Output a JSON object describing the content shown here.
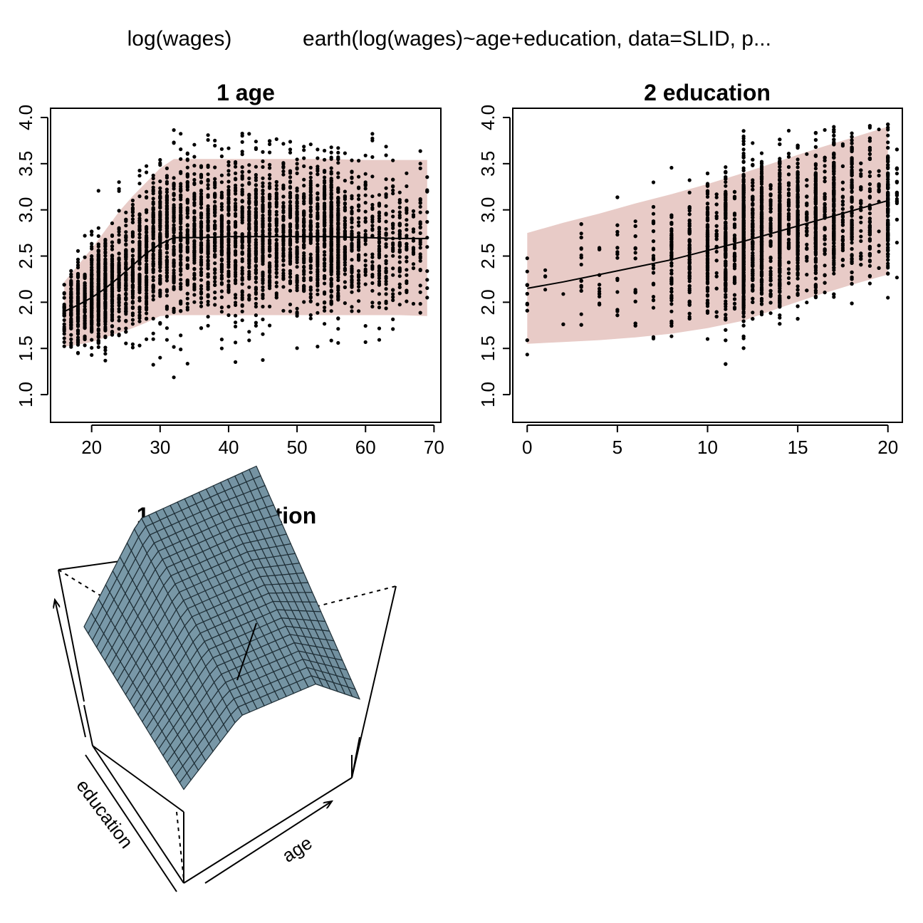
{
  "header": {
    "response": "log(wages)",
    "model_call": "earth(log(wages)~age+education, data=SLID, p..."
  },
  "chart_data": [
    {
      "type": "scatter",
      "title": "1  age",
      "xlabel": "",
      "ylabel": "",
      "xlim": [
        14,
        71
      ],
      "ylim": [
        0.7,
        4.1
      ],
      "x_ticks": [
        20,
        30,
        40,
        50,
        60,
        70
      ],
      "y_ticks": [
        1.0,
        1.5,
        2.0,
        2.5,
        3.0,
        3.5,
        4.0
      ],
      "grid": false,
      "fit_line": {
        "x": [
          16,
          18,
          20,
          22,
          24,
          26,
          28,
          30,
          32,
          36,
          40,
          45,
          50,
          55,
          60,
          65,
          69
        ],
        "y": [
          1.9,
          1.97,
          2.05,
          2.15,
          2.27,
          2.4,
          2.53,
          2.63,
          2.7,
          2.7,
          2.71,
          2.71,
          2.71,
          2.71,
          2.7,
          2.69,
          2.69
        ]
      },
      "interval_band": {
        "x": [
          16,
          18,
          20,
          22,
          24,
          26,
          28,
          30,
          32,
          36,
          40,
          45,
          50,
          55,
          60,
          65,
          69
        ],
        "upper": [
          2.22,
          2.4,
          2.58,
          2.78,
          2.98,
          3.15,
          3.3,
          3.45,
          3.55,
          3.55,
          3.55,
          3.55,
          3.55,
          3.55,
          3.54,
          3.54,
          3.54
        ],
        "lower": [
          1.52,
          1.54,
          1.57,
          1.62,
          1.67,
          1.72,
          1.78,
          1.85,
          1.86,
          1.86,
          1.86,
          1.86,
          1.86,
          1.86,
          1.86,
          1.86,
          1.85
        ]
      },
      "band_color": "#e8cbc7",
      "point_color": "#000000",
      "line_color": "#000000",
      "scatter_summary": {
        "x_range": [
          16,
          69
        ],
        "n_points_approx": 3900
      }
    },
    {
      "type": "scatter",
      "title": "2  education",
      "xlabel": "",
      "ylabel": "",
      "xlim": [
        -0.8,
        20.8
      ],
      "ylim": [
        0.7,
        4.1
      ],
      "x_ticks": [
        0,
        5,
        10,
        15,
        20
      ],
      "y_ticks": [
        1.0,
        1.5,
        2.0,
        2.5,
        3.0,
        3.5,
        4.0
      ],
      "grid": false,
      "fit_line": {
        "x": [
          0,
          2,
          4,
          6,
          8,
          10,
          12,
          14,
          16,
          18,
          20
        ],
        "y": [
          2.15,
          2.22,
          2.3,
          2.38,
          2.46,
          2.56,
          2.66,
          2.77,
          2.88,
          2.99,
          3.1
        ]
      },
      "interval_band": {
        "x": [
          0,
          2,
          4,
          6,
          8,
          10,
          12,
          14,
          16,
          18,
          20
        ],
        "upper": [
          2.75,
          2.86,
          2.96,
          3.07,
          3.17,
          3.28,
          3.4,
          3.53,
          3.66,
          3.78,
          3.9
        ],
        "lower": [
          1.55,
          1.57,
          1.59,
          1.62,
          1.66,
          1.72,
          1.8,
          1.94,
          2.07,
          2.19,
          2.3
        ]
      },
      "band_color": "#e8cbc7",
      "point_color": "#000000",
      "line_color": "#000000",
      "scatter_summary": {
        "x_range": [
          0,
          20
        ],
        "n_points_approx": 3900
      }
    },
    {
      "type": "surface",
      "title": "1 age: education",
      "axis_labels": [
        "education",
        "age"
      ],
      "surface_color": "#7b9bab",
      "mesh_color": "#1e2e36"
    }
  ]
}
